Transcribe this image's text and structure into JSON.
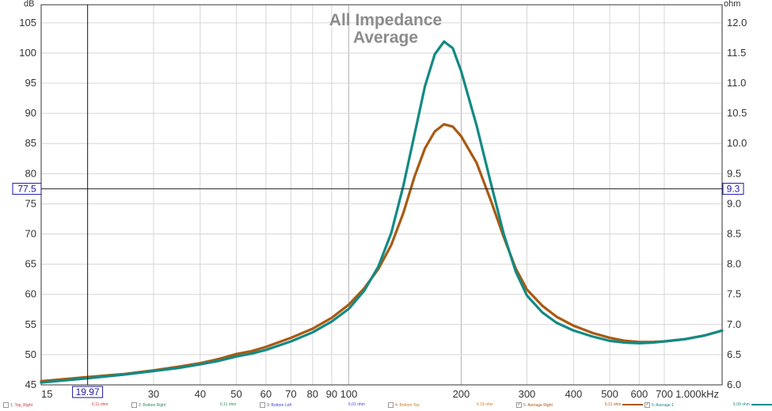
{
  "chart_data": {
    "type": "line",
    "title_lines": [
      "All Impedance",
      "Average"
    ],
    "xlabel": "Hz",
    "ylabel_left": "dB",
    "ylabel_right": "ohm",
    "x_scale": "log",
    "xlim": [
      15,
      1000
    ],
    "ylim_left": [
      45,
      108
    ],
    "ylim_right": [
      6.0,
      12.3
    ],
    "grid": true,
    "x_ticks": [
      {
        "v": 15,
        "label": "15"
      },
      {
        "v": 30,
        "label": "30"
      },
      {
        "v": 40,
        "label": "40"
      },
      {
        "v": 50,
        "label": "50"
      },
      {
        "v": 60,
        "label": "60"
      },
      {
        "v": 70,
        "label": "70"
      },
      {
        "v": 80,
        "label": "80"
      },
      {
        "v": 90,
        "label": "90"
      },
      {
        "v": 100,
        "label": "100"
      },
      {
        "v": 200,
        "label": "200"
      },
      {
        "v": 300,
        "label": "300"
      },
      {
        "v": 400,
        "label": "400"
      },
      {
        "v": 500,
        "label": "500"
      },
      {
        "v": 600,
        "label": "600"
      },
      {
        "v": 700,
        "label": "700"
      },
      {
        "v": 1000,
        "label": "1.000kHz"
      }
    ],
    "x_grid_extra": [
      20
    ],
    "y_left_ticks": [
      45,
      50,
      55,
      60,
      65,
      70,
      75,
      80,
      85,
      90,
      95,
      100,
      105
    ],
    "y_right_ticks": [
      "6.0",
      "6.5",
      "7.0",
      "7.5",
      "8.0",
      "8.5",
      "9.0",
      "9.5",
      "10.0",
      "10.5",
      "11.0",
      "11.5",
      "12.0"
    ],
    "cursor": {
      "x": 19.97,
      "x_label": "19.97",
      "y": 77.5,
      "y_label": "77.5",
      "y_right_label": "9.3"
    },
    "series": [
      {
        "name": "5: Average Right",
        "color": "#a85a12",
        "points": [
          [
            15,
            45.6
          ],
          [
            17,
            45.9
          ],
          [
            20,
            46.3
          ],
          [
            25,
            46.8
          ],
          [
            30,
            47.4
          ],
          [
            35,
            48.0
          ],
          [
            40,
            48.6
          ],
          [
            45,
            49.3
          ],
          [
            50,
            50.1
          ],
          [
            55,
            50.6
          ],
          [
            60,
            51.3
          ],
          [
            70,
            52.8
          ],
          [
            80,
            54.3
          ],
          [
            90,
            56.1
          ],
          [
            100,
            58.3
          ],
          [
            110,
            61.0
          ],
          [
            120,
            64.2
          ],
          [
            130,
            68.2
          ],
          [
            140,
            73.5
          ],
          [
            150,
            79.5
          ],
          [
            160,
            84.2
          ],
          [
            170,
            87.0
          ],
          [
            180,
            88.2
          ],
          [
            190,
            87.8
          ],
          [
            200,
            86.2
          ],
          [
            220,
            81.8
          ],
          [
            240,
            75.6
          ],
          [
            260,
            69.5
          ],
          [
            280,
            64.3
          ],
          [
            300,
            60.8
          ],
          [
            330,
            58.1
          ],
          [
            360,
            56.3
          ],
          [
            400,
            54.8
          ],
          [
            450,
            53.6
          ],
          [
            500,
            52.8
          ],
          [
            550,
            52.3
          ],
          [
            600,
            52.1
          ],
          [
            650,
            52.1
          ],
          [
            700,
            52.2
          ],
          [
            800,
            52.6
          ],
          [
            900,
            53.2
          ],
          [
            1000,
            54.0
          ]
        ]
      },
      {
        "name": "6: Average 1",
        "color": "#138a84",
        "points": [
          [
            15,
            45.4
          ],
          [
            17,
            45.7
          ],
          [
            20,
            46.1
          ],
          [
            25,
            46.7
          ],
          [
            30,
            47.3
          ],
          [
            35,
            47.8
          ],
          [
            40,
            48.4
          ],
          [
            45,
            49.0
          ],
          [
            50,
            49.7
          ],
          [
            55,
            50.2
          ],
          [
            60,
            50.8
          ],
          [
            70,
            52.2
          ],
          [
            80,
            53.7
          ],
          [
            90,
            55.5
          ],
          [
            100,
            57.6
          ],
          [
            110,
            60.6
          ],
          [
            120,
            64.6
          ],
          [
            130,
            70.2
          ],
          [
            140,
            78.0
          ],
          [
            150,
            86.5
          ],
          [
            160,
            94.5
          ],
          [
            170,
            99.8
          ],
          [
            180,
            101.9
          ],
          [
            190,
            100.8
          ],
          [
            200,
            97.0
          ],
          [
            220,
            88.0
          ],
          [
            240,
            78.5
          ],
          [
            260,
            70.0
          ],
          [
            280,
            63.8
          ],
          [
            300,
            59.8
          ],
          [
            330,
            57.0
          ],
          [
            360,
            55.3
          ],
          [
            400,
            54.0
          ],
          [
            450,
            53.0
          ],
          [
            500,
            52.3
          ],
          [
            550,
            52.0
          ],
          [
            600,
            51.9
          ],
          [
            650,
            52.0
          ],
          [
            700,
            52.2
          ],
          [
            800,
            52.6
          ],
          [
            900,
            53.2
          ],
          [
            1000,
            54.0
          ]
        ]
      }
    ]
  },
  "legend": [
    {
      "check": "",
      "label": "1: Top_Right",
      "value": "6.11 ohm",
      "color": "#cc3333"
    },
    {
      "check": "",
      "label": "2: Bottom Right",
      "value": "6.11 ohm",
      "color": "#2a8a5a"
    },
    {
      "check": "",
      "label": "3: Bottom Left",
      "value": "6.01 ohm",
      "color": "#4444cc"
    },
    {
      "check": "",
      "label": "4: Bottom Top",
      "value": "6.18 ohm",
      "color": "#cc7a22"
    },
    {
      "check": "✓",
      "label": "5: Average Right",
      "value": "6.11 ohm",
      "color": "#a85a12"
    },
    {
      "check": "✓",
      "label": "6: Average 1",
      "value": "6.09 ohm",
      "color": "#138a84"
    }
  ]
}
